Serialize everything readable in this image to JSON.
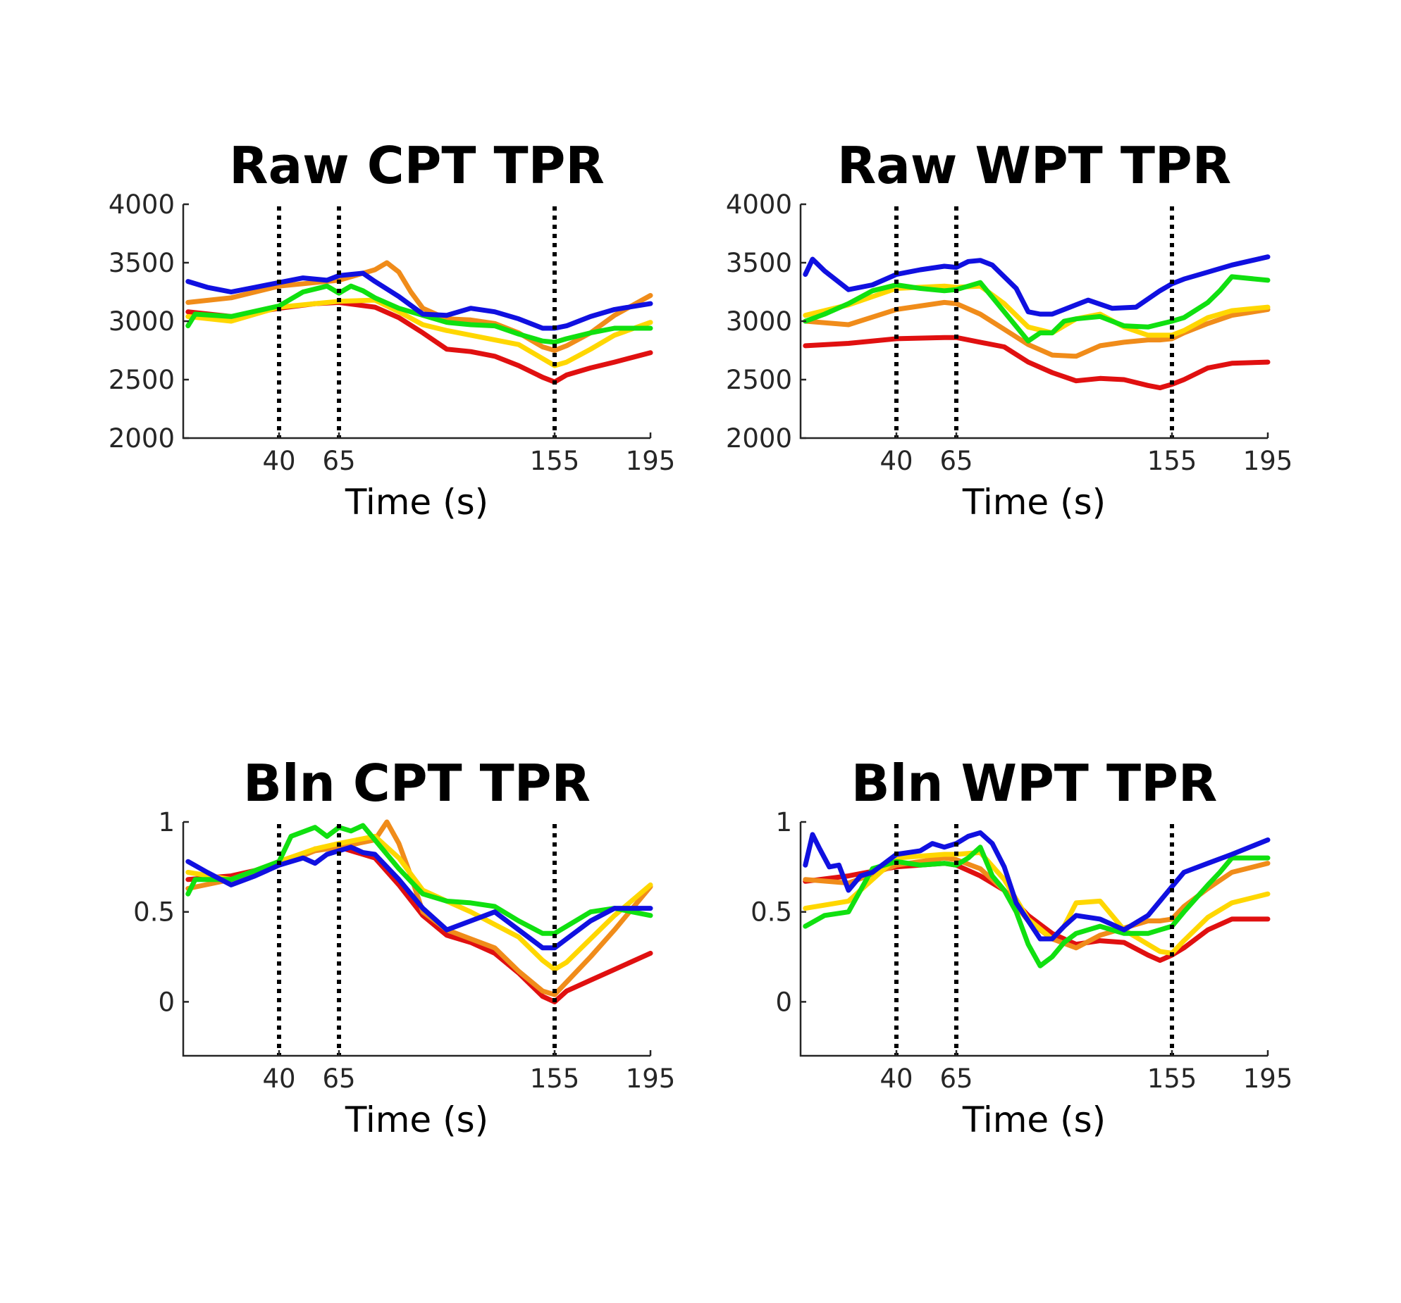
{
  "chart_data": [
    {
      "type": "line",
      "title": "Raw CPT TPR",
      "xlabel": "Time (s)",
      "ylabel": "",
      "xlim": [
        0,
        195
      ],
      "ylim": [
        2000,
        4000
      ],
      "xticks": [
        40,
        65,
        155,
        195
      ],
      "yticks": [
        2000,
        2500,
        3000,
        3500,
        4000
      ],
      "ytick_labels": [
        "2000",
        "2500",
        "3000",
        "3500",
        "4000"
      ],
      "vlines": [
        40,
        65,
        155
      ],
      "grid": false,
      "series": [
        {
          "color": "#e01010",
          "x": [
            2,
            20,
            40,
            55,
            65,
            80,
            90,
            100,
            110,
            120,
            130,
            140,
            150,
            155,
            160,
            170,
            180,
            195
          ],
          "y": [
            3080,
            3040,
            3110,
            3150,
            3160,
            3120,
            3030,
            2900,
            2760,
            2740,
            2700,
            2620,
            2520,
            2480,
            2540,
            2600,
            2650,
            2730
          ]
        },
        {
          "color": "#f08c1a",
          "x": [
            2,
            20,
            40,
            55,
            65,
            80,
            85,
            90,
            95,
            100,
            110,
            120,
            130,
            140,
            150,
            155,
            160,
            170,
            180,
            195
          ],
          "y": [
            3160,
            3200,
            3300,
            3330,
            3350,
            3440,
            3500,
            3420,
            3250,
            3110,
            3020,
            3010,
            2980,
            2900,
            2780,
            2750,
            2790,
            2900,
            3050,
            3220
          ]
        },
        {
          "color": "#ffd700",
          "x": [
            2,
            20,
            40,
            55,
            65,
            80,
            90,
            100,
            110,
            120,
            130,
            140,
            150,
            155,
            160,
            170,
            180,
            195
          ],
          "y": [
            3040,
            3000,
            3120,
            3150,
            3170,
            3180,
            3080,
            2970,
            2920,
            2880,
            2840,
            2800,
            2680,
            2620,
            2650,
            2760,
            2880,
            2990
          ]
        },
        {
          "color": "#10e010",
          "x": [
            2,
            5,
            20,
            40,
            50,
            60,
            65,
            70,
            75,
            80,
            90,
            100,
            110,
            120,
            130,
            140,
            150,
            155,
            160,
            170,
            180,
            195
          ],
          "y": [
            2960,
            3060,
            3040,
            3130,
            3250,
            3300,
            3240,
            3300,
            3260,
            3200,
            3110,
            3050,
            2990,
            2970,
            2960,
            2890,
            2830,
            2820,
            2850,
            2900,
            2940,
            2940
          ]
        },
        {
          "color": "#1010e0",
          "x": [
            2,
            10,
            20,
            30,
            40,
            50,
            60,
            65,
            70,
            75,
            80,
            90,
            100,
            110,
            120,
            130,
            140,
            150,
            155,
            160,
            170,
            180,
            195
          ],
          "y": [
            3340,
            3290,
            3250,
            3290,
            3330,
            3370,
            3350,
            3390,
            3400,
            3410,
            3340,
            3210,
            3060,
            3050,
            3110,
            3080,
            3020,
            2940,
            2940,
            2960,
            3040,
            3100,
            3150
          ]
        }
      ]
    },
    {
      "type": "line",
      "title": "Raw WPT TPR",
      "xlabel": "Time (s)",
      "ylabel": "",
      "xlim": [
        0,
        195
      ],
      "ylim": [
        2000,
        4000
      ],
      "xticks": [
        40,
        65,
        155,
        195
      ],
      "yticks": [
        2000,
        2500,
        3000,
        3500,
        4000
      ],
      "ytick_labels": [
        "2000",
        "2500",
        "3000",
        "3500",
        "4000"
      ],
      "vlines": [
        40,
        65,
        155
      ],
      "grid": false,
      "series": [
        {
          "color": "#e01010",
          "x": [
            2,
            20,
            40,
            60,
            65,
            75,
            85,
            95,
            105,
            115,
            125,
            135,
            145,
            150,
            155,
            160,
            170,
            180,
            195
          ],
          "y": [
            2790,
            2810,
            2850,
            2860,
            2860,
            2820,
            2780,
            2650,
            2560,
            2490,
            2510,
            2500,
            2450,
            2430,
            2460,
            2500,
            2600,
            2640,
            2650
          ]
        },
        {
          "color": "#f08c1a",
          "x": [
            2,
            20,
            40,
            60,
            65,
            75,
            85,
            95,
            105,
            115,
            125,
            135,
            145,
            150,
            155,
            160,
            170,
            180,
            195
          ],
          "y": [
            3000,
            2970,
            3100,
            3160,
            3150,
            3060,
            2930,
            2800,
            2710,
            2700,
            2790,
            2820,
            2840,
            2840,
            2850,
            2900,
            2980,
            3050,
            3100
          ]
        },
        {
          "color": "#ffd700",
          "x": [
            2,
            20,
            40,
            60,
            65,
            75,
            85,
            95,
            105,
            115,
            125,
            135,
            145,
            150,
            155,
            160,
            170,
            180,
            195
          ],
          "y": [
            3050,
            3140,
            3280,
            3300,
            3290,
            3300,
            3150,
            2950,
            2900,
            3020,
            3060,
            2950,
            2880,
            2880,
            2880,
            2920,
            3030,
            3090,
            3120
          ]
        },
        {
          "color": "#10e010",
          "x": [
            2,
            10,
            20,
            30,
            40,
            50,
            60,
            65,
            75,
            85,
            95,
            100,
            105,
            110,
            115,
            125,
            135,
            145,
            155,
            160,
            170,
            175,
            180,
            195
          ],
          "y": [
            3000,
            3060,
            3150,
            3260,
            3310,
            3280,
            3260,
            3270,
            3330,
            3080,
            2830,
            2900,
            2900,
            3000,
            3020,
            3040,
            2960,
            2950,
            3000,
            3030,
            3160,
            3260,
            3380,
            3350
          ]
        },
        {
          "color": "#1010e0",
          "x": [
            2,
            5,
            10,
            20,
            30,
            40,
            50,
            60,
            65,
            70,
            75,
            80,
            90,
            95,
            100,
            105,
            110,
            120,
            130,
            140,
            150,
            155,
            160,
            170,
            180,
            195
          ],
          "y": [
            3400,
            3530,
            3430,
            3270,
            3310,
            3400,
            3440,
            3470,
            3460,
            3510,
            3520,
            3480,
            3280,
            3080,
            3060,
            3060,
            3100,
            3180,
            3110,
            3120,
            3260,
            3320,
            3360,
            3420,
            3480,
            3550
          ]
        }
      ]
    },
    {
      "type": "line",
      "title": "Bln CPT TPR",
      "xlabel": "Time (s)",
      "ylabel": "",
      "xlim": [
        0,
        195
      ],
      "ylim": [
        -0.3,
        1
      ],
      "xticks": [
        40,
        65,
        155,
        195
      ],
      "yticks": [
        0,
        0.5,
        1
      ],
      "ytick_labels": [
        "0",
        "0.5",
        "1"
      ],
      "vlines": [
        40,
        65,
        155
      ],
      "grid": false,
      "series": [
        {
          "color": "#e01010",
          "x": [
            2,
            20,
            40,
            55,
            65,
            80,
            90,
            100,
            110,
            120,
            130,
            140,
            150,
            155,
            160,
            170,
            180,
            195
          ],
          "y": [
            0.68,
            0.7,
            0.76,
            0.85,
            0.86,
            0.8,
            0.65,
            0.48,
            0.37,
            0.33,
            0.27,
            0.16,
            0.03,
            0.0,
            0.06,
            0.12,
            0.18,
            0.27
          ]
        },
        {
          "color": "#f08c1a",
          "x": [
            2,
            20,
            40,
            55,
            65,
            80,
            85,
            90,
            95,
            100,
            110,
            120,
            130,
            140,
            150,
            155,
            160,
            170,
            180,
            195
          ],
          "y": [
            0.63,
            0.68,
            0.76,
            0.84,
            0.86,
            0.9,
            1.0,
            0.88,
            0.7,
            0.5,
            0.4,
            0.35,
            0.3,
            0.17,
            0.06,
            0.04,
            0.11,
            0.25,
            0.4,
            0.64
          ]
        },
        {
          "color": "#ffd700",
          "x": [
            2,
            20,
            40,
            55,
            65,
            80,
            90,
            100,
            110,
            120,
            130,
            140,
            150,
            155,
            160,
            170,
            180,
            195
          ],
          "y": [
            0.72,
            0.68,
            0.78,
            0.85,
            0.88,
            0.92,
            0.8,
            0.62,
            0.56,
            0.5,
            0.43,
            0.36,
            0.23,
            0.18,
            0.22,
            0.35,
            0.48,
            0.65
          ]
        },
        {
          "color": "#10e010",
          "x": [
            2,
            5,
            20,
            40,
            45,
            55,
            60,
            65,
            70,
            75,
            80,
            90,
            100,
            110,
            120,
            130,
            140,
            150,
            155,
            160,
            170,
            180,
            195
          ],
          "y": [
            0.6,
            0.68,
            0.68,
            0.78,
            0.92,
            0.97,
            0.92,
            0.97,
            0.95,
            0.98,
            0.9,
            0.74,
            0.6,
            0.56,
            0.55,
            0.53,
            0.45,
            0.38,
            0.38,
            0.42,
            0.5,
            0.52,
            0.48
          ]
        },
        {
          "color": "#1010e0",
          "x": [
            2,
            10,
            20,
            30,
            40,
            50,
            55,
            60,
            65,
            70,
            75,
            80,
            90,
            100,
            110,
            120,
            130,
            140,
            150,
            155,
            160,
            170,
            180,
            195
          ],
          "y": [
            0.78,
            0.72,
            0.65,
            0.7,
            0.76,
            0.8,
            0.77,
            0.82,
            0.84,
            0.86,
            0.83,
            0.82,
            0.68,
            0.52,
            0.4,
            0.45,
            0.5,
            0.4,
            0.3,
            0.3,
            0.35,
            0.45,
            0.52,
            0.52
          ]
        }
      ]
    },
    {
      "type": "line",
      "title": "Bln WPT TPR",
      "xlabel": "Time (s)",
      "ylabel": "",
      "xlim": [
        0,
        195
      ],
      "ylim": [
        -0.3,
        1
      ],
      "xticks": [
        40,
        65,
        155,
        195
      ],
      "yticks": [
        0,
        0.5,
        1
      ],
      "ytick_labels": [
        "0",
        "0.5",
        "1"
      ],
      "vlines": [
        40,
        65,
        155
      ],
      "grid": false,
      "series": [
        {
          "color": "#e01010",
          "x": [
            2,
            20,
            40,
            60,
            65,
            75,
            85,
            95,
            105,
            115,
            125,
            135,
            145,
            150,
            155,
            160,
            170,
            180,
            195
          ],
          "y": [
            0.67,
            0.7,
            0.75,
            0.77,
            0.76,
            0.7,
            0.62,
            0.48,
            0.38,
            0.32,
            0.34,
            0.33,
            0.26,
            0.23,
            0.26,
            0.3,
            0.4,
            0.46,
            0.46
          ]
        },
        {
          "color": "#f08c1a",
          "x": [
            2,
            20,
            40,
            60,
            65,
            75,
            85,
            95,
            105,
            115,
            125,
            135,
            145,
            150,
            155,
            160,
            170,
            180,
            195
          ],
          "y": [
            0.68,
            0.66,
            0.76,
            0.8,
            0.79,
            0.74,
            0.62,
            0.45,
            0.35,
            0.3,
            0.37,
            0.41,
            0.45,
            0.45,
            0.46,
            0.53,
            0.63,
            0.72,
            0.77
          ]
        },
        {
          "color": "#ffd700",
          "x": [
            2,
            20,
            40,
            60,
            65,
            75,
            85,
            95,
            105,
            110,
            115,
            125,
            135,
            145,
            150,
            155,
            160,
            170,
            180,
            195
          ],
          "y": [
            0.52,
            0.56,
            0.8,
            0.82,
            0.82,
            0.83,
            0.68,
            0.46,
            0.35,
            0.42,
            0.55,
            0.56,
            0.4,
            0.32,
            0.28,
            0.27,
            0.34,
            0.47,
            0.55,
            0.6
          ]
        },
        {
          "color": "#10e010",
          "x": [
            2,
            10,
            20,
            30,
            40,
            50,
            60,
            65,
            70,
            75,
            80,
            85,
            90,
            95,
            100,
            105,
            110,
            115,
            125,
            135,
            145,
            155,
            160,
            170,
            175,
            180,
            195
          ],
          "y": [
            0.42,
            0.48,
            0.5,
            0.74,
            0.78,
            0.76,
            0.77,
            0.76,
            0.8,
            0.86,
            0.7,
            0.62,
            0.5,
            0.32,
            0.2,
            0.25,
            0.33,
            0.38,
            0.42,
            0.38,
            0.38,
            0.42,
            0.5,
            0.65,
            0.72,
            0.8,
            0.8
          ]
        },
        {
          "color": "#1010e0",
          "x": [
            2,
            5,
            8,
            12,
            16,
            20,
            25,
            30,
            40,
            50,
            55,
            60,
            65,
            70,
            75,
            80,
            85,
            90,
            95,
            100,
            105,
            110,
            115,
            125,
            135,
            145,
            155,
            160,
            170,
            180,
            195
          ],
          "y": [
            0.76,
            0.93,
            0.85,
            0.75,
            0.76,
            0.62,
            0.7,
            0.72,
            0.82,
            0.84,
            0.88,
            0.86,
            0.88,
            0.92,
            0.94,
            0.88,
            0.75,
            0.55,
            0.45,
            0.35,
            0.35,
            0.42,
            0.48,
            0.46,
            0.4,
            0.48,
            0.64,
            0.72,
            0.77,
            0.82,
            0.9
          ]
        }
      ]
    }
  ]
}
